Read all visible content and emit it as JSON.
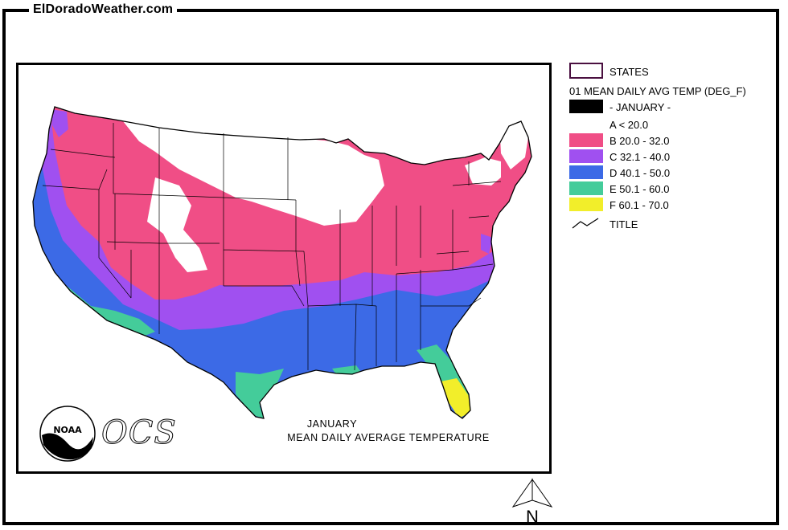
{
  "site": {
    "title": "ElDoradoWeather.com"
  },
  "map": {
    "caption_line1": "JANUARY",
    "caption_line2": "MEAN DAILY AVERAGE TEMPERATURE",
    "logo_text": "NOAA",
    "ocs_text": "OCS"
  },
  "legend": {
    "states_label": "STATES",
    "variable_heading": "01 MEAN DAILY AVG TEMP (DEG_F)",
    "month_label": "- JANUARY -",
    "classes": [
      {
        "label": "A < 20.0",
        "color": "#ffffff"
      },
      {
        "label": "B 20.0 - 32.0",
        "color": "#f04e86"
      },
      {
        "label": "C 32.1 - 40.0",
        "color": "#a050f0"
      },
      {
        "label": "D 40.1 - 50.0",
        "color": "#3c6ae6"
      },
      {
        "label": "E 50.1 - 60.0",
        "color": "#44cc9a"
      },
      {
        "label": "F 60.1 - 70.0",
        "color": "#f2ee2a"
      }
    ],
    "title_label": "TITLE",
    "states_outline_color": "#4a1040"
  },
  "north_arrow": {
    "label": "N"
  }
}
